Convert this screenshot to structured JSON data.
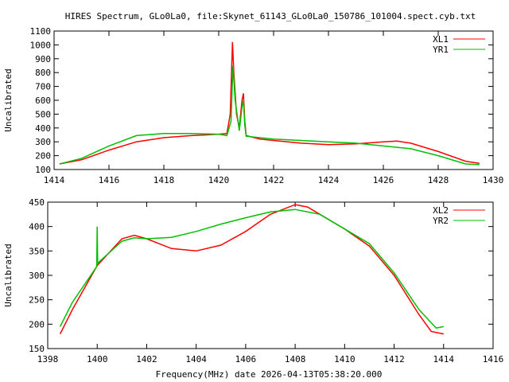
{
  "chart_data": [
    {
      "type": "line",
      "title": "HIRES Spectrum, GLo0La0, file:Skynet_61143_GLo0La0_150786_101004.spect.cyb.txt",
      "xlabel": "",
      "ylabel": "Uncalibrated",
      "xlim": [
        1414,
        1430
      ],
      "ylim": [
        100,
        1100
      ],
      "xticks": [
        1414,
        1416,
        1418,
        1420,
        1422,
        1424,
        1426,
        1428,
        1430
      ],
      "yticks": [
        100,
        200,
        300,
        400,
        500,
        600,
        700,
        800,
        900,
        1000,
        1100
      ],
      "legend": "top-right",
      "series": [
        {
          "name": "XL1",
          "color": "#ff0000",
          "x": [
            1414.2,
            1415,
            1416,
            1417,
            1418,
            1419,
            1420,
            1420.3,
            1420.42,
            1420.5,
            1420.55,
            1420.65,
            1420.75,
            1420.85,
            1420.9,
            1420.95,
            1421.0,
            1421.5,
            1422,
            1423,
            1424,
            1425,
            1426,
            1426.5,
            1427,
            1428,
            1429,
            1429.5
          ],
          "y": [
            140,
            170,
            240,
            300,
            330,
            345,
            355,
            360,
            500,
            1020,
            800,
            500,
            400,
            600,
            650,
            450,
            345,
            320,
            310,
            290,
            280,
            285,
            300,
            305,
            290,
            230,
            160,
            145
          ]
        },
        {
          "name": "YR1",
          "color": "#00c000",
          "x": [
            1414.2,
            1415,
            1416,
            1417,
            1418,
            1419,
            1420,
            1420.3,
            1420.45,
            1420.52,
            1420.6,
            1420.75,
            1420.85,
            1420.9,
            1420.95,
            1421.0,
            1422,
            1423,
            1424,
            1425,
            1426,
            1427,
            1428,
            1429,
            1429.5
          ],
          "y": [
            140,
            180,
            270,
            345,
            360,
            360,
            355,
            345,
            450,
            850,
            600,
            380,
            550,
            600,
            420,
            340,
            320,
            310,
            300,
            290,
            270,
            250,
            200,
            140,
            135
          ]
        }
      ]
    },
    {
      "type": "line",
      "title": "",
      "xlabel": "Frequency(MHz) date 2026-04-13T05:38:20.000",
      "ylabel": "Uncalibrated",
      "xlim": [
        1398,
        1416
      ],
      "ylim": [
        150,
        450
      ],
      "xticks": [
        1398,
        1400,
        1402,
        1404,
        1406,
        1408,
        1410,
        1412,
        1414,
        1416
      ],
      "yticks": [
        150,
        200,
        250,
        300,
        350,
        400,
        450
      ],
      "legend": "top-right",
      "series": [
        {
          "name": "XL2",
          "color": "#ff0000",
          "x": [
            1398.5,
            1399,
            1400,
            1401,
            1401.5,
            1402,
            1403,
            1404,
            1405,
            1406,
            1407,
            1408,
            1408.5,
            1409,
            1410,
            1411,
            1412,
            1413,
            1413.5,
            1414
          ],
          "y": [
            180,
            230,
            320,
            375,
            382,
            375,
            355,
            350,
            362,
            390,
            425,
            445,
            440,
            425,
            395,
            360,
            300,
            220,
            185,
            180
          ]
        },
        {
          "name": "YR2",
          "color": "#00c000",
          "x": [
            1398.5,
            1399,
            1399.98,
            1400,
            1400.02,
            1401,
            1401.5,
            1402,
            1403,
            1404,
            1405,
            1406,
            1407,
            1408,
            1409,
            1410,
            1411,
            1412,
            1413,
            1413.7,
            1414
          ],
          "y": [
            195,
            245,
            318,
            400,
            325,
            370,
            377,
            375,
            378,
            390,
            405,
            418,
            430,
            435,
            425,
            395,
            365,
            305,
            230,
            192,
            195
          ]
        }
      ]
    }
  ]
}
